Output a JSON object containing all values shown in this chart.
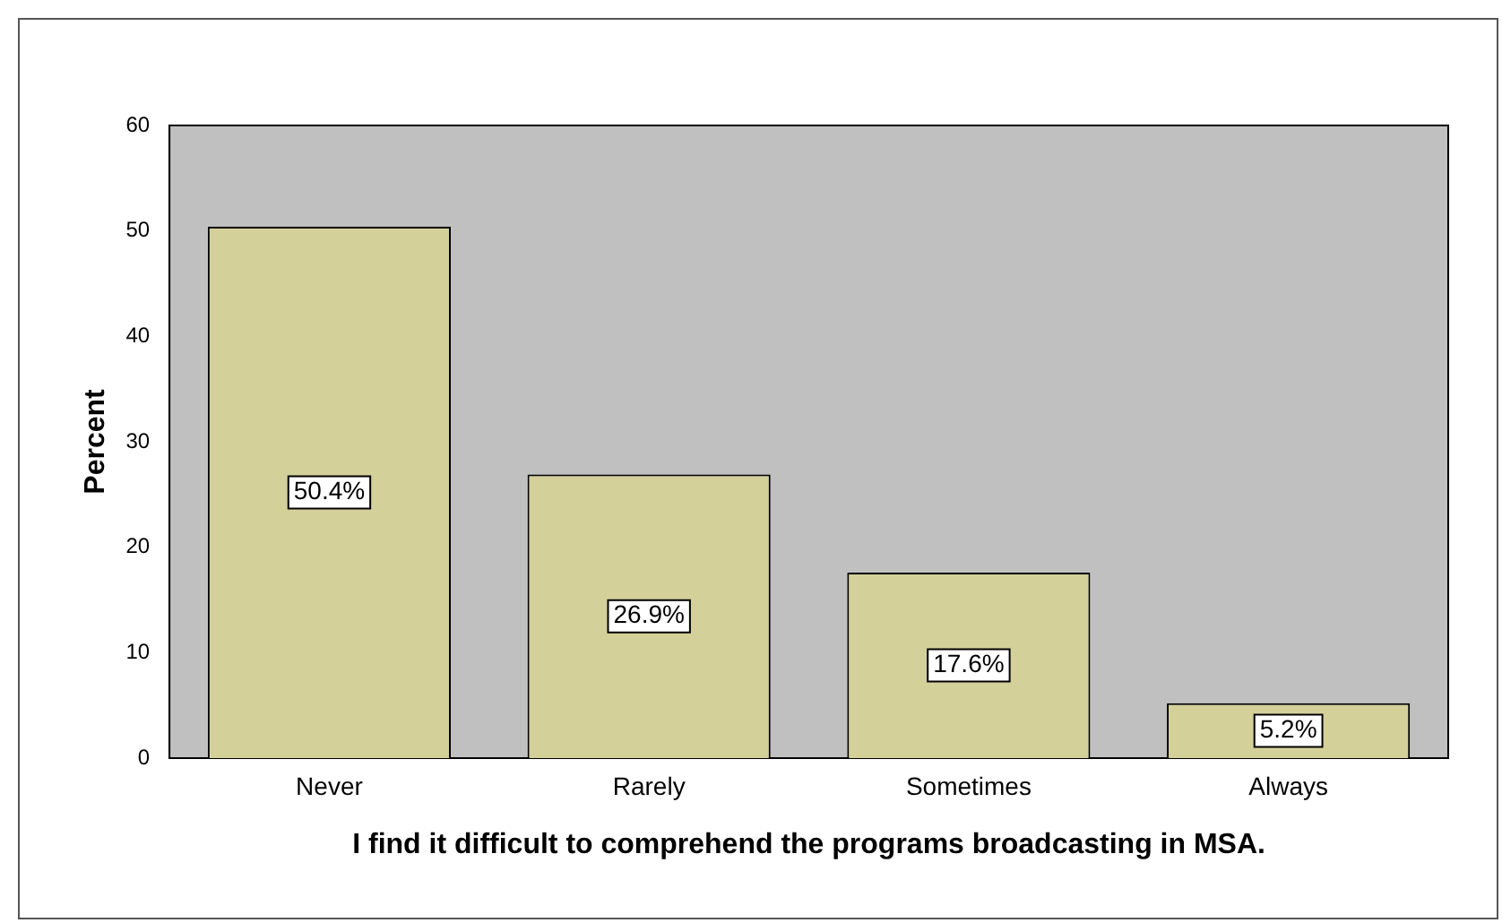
{
  "chart_data": {
    "type": "bar",
    "xlabel": "I find it difficult to comprehend the programs broadcasting in MSA.",
    "ylabel": "Percent",
    "categories": [
      "Never",
      "Rarely",
      "Sometimes",
      "Always"
    ],
    "values": [
      50.4,
      26.9,
      17.6,
      5.2
    ],
    "value_labels": [
      "50.4%",
      "26.9%",
      "17.6%",
      "5.2%"
    ],
    "color": "#d4d09a",
    "ylim": [
      0,
      60
    ],
    "yticks": [
      0,
      10,
      20,
      30,
      40,
      50,
      60
    ],
    "grid": false,
    "legend": false
  }
}
